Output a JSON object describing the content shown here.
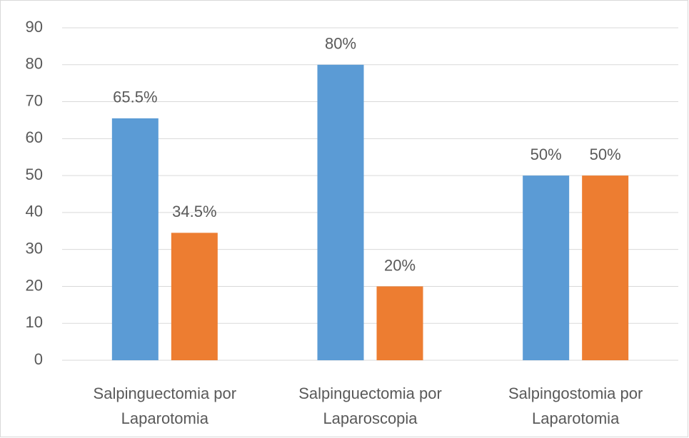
{
  "chart_data": {
    "type": "bar",
    "categories": [
      "Salpinguectomia por\nLaparotomia",
      "Salpinguectomia por\nLaparoscopia",
      "Salpingostomia por\nLaparotomia"
    ],
    "series": [
      {
        "color": "#5b9bd5",
        "values": [
          65.5,
          80,
          50
        ],
        "value_labels": [
          "65.5%",
          "80%",
          "50%"
        ]
      },
      {
        "color": "#ed7d31",
        "values": [
          34.5,
          20,
          50
        ],
        "value_labels": [
          "34.5%",
          "20%",
          "50%"
        ]
      }
    ],
    "ylim": [
      0,
      90
    ],
    "yticks": [
      0,
      10,
      20,
      30,
      40,
      50,
      60,
      70,
      80,
      90
    ],
    "grid": true
  }
}
